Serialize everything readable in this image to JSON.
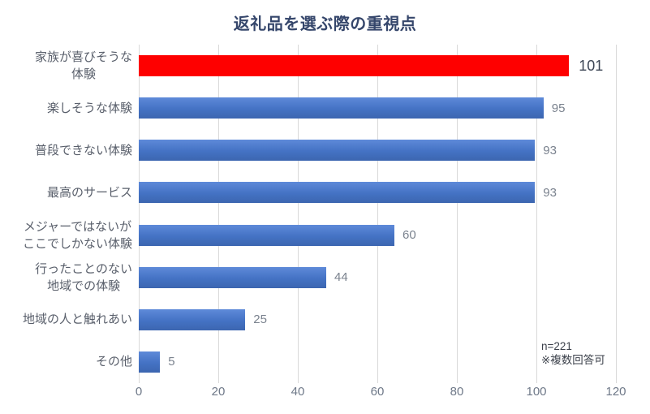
{
  "title": "返礼品を選ぶ際の重視点",
  "note": {
    "line1": "n=221",
    "line2": "※複数回答可"
  },
  "colors": {
    "highlight_bar": "#fe0000",
    "bar_gradient_top": "#5e8ad9",
    "bar_gradient_mid": "#4472c4",
    "bar_gradient_bottom": "#3c66b0",
    "title_text": "#35466b",
    "category_text": "#595f6b",
    "value_text": "#7a828e",
    "highlight_value_text": "#3d4655",
    "axis_text": "#6e7888",
    "gridline": "#d9d9d9",
    "note_text": "#3a3f49"
  },
  "chart_data": {
    "type": "bar",
    "orientation": "horizontal",
    "title": "返礼品を選ぶ際の重視点",
    "categories": [
      "家族が喜びそうな\n体験",
      "楽しそうな体験",
      "普段できない体験",
      "最高のサービス",
      "メジャーではないが\nここでしかない体験",
      "行ったことのない\n地域での体験",
      "地域の人と触れあい",
      "その他"
    ],
    "values": [
      101,
      95,
      93,
      93,
      60,
      44,
      25,
      5
    ],
    "highlighted_index": 0,
    "xlim": [
      0,
      120
    ],
    "x_ticks": [
      0,
      20,
      40,
      60,
      80,
      100,
      120
    ],
    "grid": "vertical",
    "legend": "none",
    "annotations": [
      "n=221",
      "※複数回答可"
    ]
  }
}
